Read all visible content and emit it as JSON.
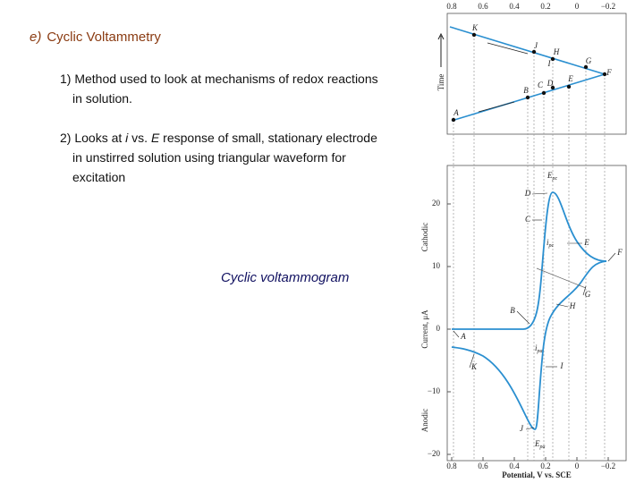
{
  "slide": {
    "heading": {
      "label": "e)",
      "title": "Cyclic Voltammetry"
    },
    "point_1": "1) Method used to look at mechanisms of redox reactions in solution.",
    "point_2": [
      "2) Looks at ",
      "i",
      " vs. ",
      "E",
      " response of small, stationary electrode in unstirred solution using triangular waveform for excitation"
    ],
    "caption": "Cyclic voltammogram"
  },
  "figure": {
    "top_x_ticks": [
      "0.8",
      "0.6",
      "0.4",
      "0.2",
      "0",
      "−0.2"
    ],
    "time_label": "Time",
    "top_points": [
      "K",
      "J",
      "H",
      "I",
      "G",
      "F",
      "E",
      "D",
      "C",
      "B",
      "A"
    ],
    "y_ticks": [
      "20",
      "10",
      "0",
      "−10",
      "−20"
    ],
    "bottom_x_ticks": [
      "0.8",
      "0.6",
      "0.4",
      "0.2",
      "0",
      "−0.2"
    ],
    "cathodic": "Cathodic",
    "anodic": "Anodic",
    "y_label": "Current, μA",
    "x_label": "Potential, V vs. SCE",
    "curve_points": [
      "D",
      "C",
      "E",
      "F",
      "G",
      "H",
      "B",
      "A",
      "K",
      "I",
      "J"
    ],
    "peak_labels": [
      {
        "main": "E",
        "sub": "pc"
      },
      {
        "main": "i",
        "sub": "pc"
      },
      {
        "main": "i",
        "sub": "pa"
      },
      {
        "main": "E",
        "sub": "pa"
      }
    ]
  }
}
